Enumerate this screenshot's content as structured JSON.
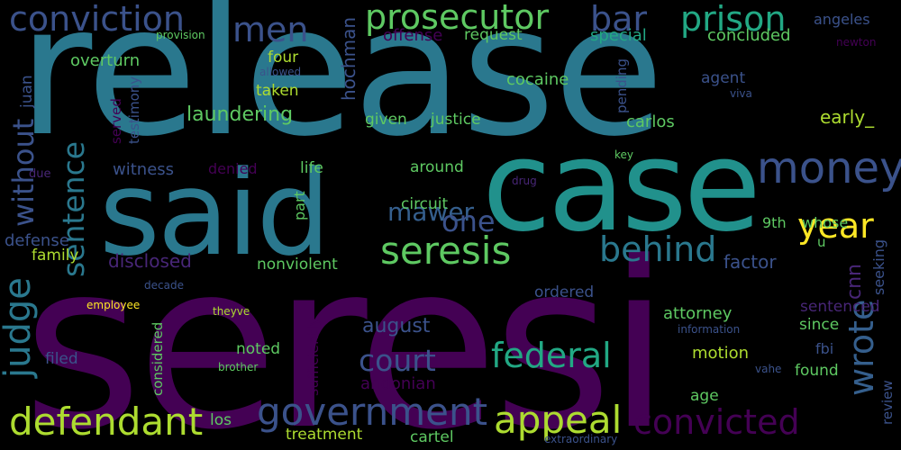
{
  "background": "#000000",
  "palette": {
    "teal": "#2a788e",
    "teal_light": "#22a884",
    "teal_mid": "#21918c",
    "green": "#5ec962",
    "lime": "#addc30",
    "yellow": "#fde725",
    "blue_slate": "#355f8d",
    "indigo": "#3b528b",
    "purple": "#440154",
    "purple_mid": "#482677"
  },
  "words": [
    {
      "text": "release",
      "color": "#2a788e"
    },
    {
      "text": "seresi",
      "color": "#440154"
    },
    {
      "text": "said",
      "color": "#2a788e"
    },
    {
      "text": "case",
      "color": "#21918c"
    },
    {
      "text": "conviction",
      "color": "#3b528b"
    },
    {
      "text": "prosecutor",
      "color": "#5ec962"
    },
    {
      "text": "bar",
      "color": "#3b528b"
    },
    {
      "text": "prison",
      "color": "#22a884"
    },
    {
      "text": "men",
      "color": "#3b528b"
    },
    {
      "text": "money",
      "color": "#3b528b"
    },
    {
      "text": "year",
      "color": "#fde725"
    },
    {
      "text": "seresis",
      "color": "#5ec962"
    },
    {
      "text": "behind",
      "color": "#2a788e"
    },
    {
      "text": "mawer",
      "color": "#355f8d"
    },
    {
      "text": "one",
      "color": "#3b528b"
    },
    {
      "text": "sentence",
      "color": "#2a788e"
    },
    {
      "text": "without",
      "color": "#3b528b"
    },
    {
      "text": "judge",
      "color": "#2a788e"
    },
    {
      "text": "defendant",
      "color": "#addc30"
    },
    {
      "text": "government",
      "color": "#3b528b"
    },
    {
      "text": "appeal",
      "color": "#addc30"
    },
    {
      "text": "convicted",
      "color": "#440154"
    },
    {
      "text": "federal",
      "color": "#22a884"
    },
    {
      "text": "court",
      "color": "#3b528b"
    },
    {
      "text": "wrote",
      "color": "#355f8d"
    },
    {
      "text": "laundering",
      "color": "#5ec962"
    },
    {
      "text": "overturn",
      "color": "#5ec962"
    },
    {
      "text": "provision",
      "color": "#5ec962"
    },
    {
      "text": "offense",
      "color": "#440154"
    },
    {
      "text": "request",
      "color": "#5ec962"
    },
    {
      "text": "special",
      "color": "#22a884"
    },
    {
      "text": "concluded",
      "color": "#5ec962"
    },
    {
      "text": "angeles",
      "color": "#3b528b"
    },
    {
      "text": "newton",
      "color": "#440154"
    },
    {
      "text": "juan",
      "color": "#3b528b"
    },
    {
      "text": "allowed",
      "color": "#3b528b"
    },
    {
      "text": "testimony",
      "color": "#3b528b"
    },
    {
      "text": "served",
      "color": "#440154"
    },
    {
      "text": "four",
      "color": "#addc30"
    },
    {
      "text": "hochman",
      "color": "#3b528b"
    },
    {
      "text": "taken",
      "color": "#addc30"
    },
    {
      "text": "cocaine",
      "color": "#5ec962"
    },
    {
      "text": "pending",
      "color": "#3b528b"
    },
    {
      "text": "agent",
      "color": "#3b528b"
    },
    {
      "text": "viva",
      "color": "#3b528b"
    },
    {
      "text": "given",
      "color": "#5ec962"
    },
    {
      "text": "justice",
      "color": "#5ec962"
    },
    {
      "text": "carlos",
      "color": "#5ec962"
    },
    {
      "text": "early_",
      "color": "#addc30"
    },
    {
      "text": "key",
      "color": "#5ec962"
    },
    {
      "text": "witness",
      "color": "#3b528b"
    },
    {
      "text": "denied",
      "color": "#440154"
    },
    {
      "text": "life",
      "color": "#5ec962"
    },
    {
      "text": "around",
      "color": "#5ec962"
    },
    {
      "text": "due",
      "color": "#482677"
    },
    {
      "text": "drug",
      "color": "#482677"
    },
    {
      "text": "circuit",
      "color": "#5ec962"
    },
    {
      "text": "9th",
      "color": "#5ec962"
    },
    {
      "text": "whose",
      "color": "#5ec962"
    },
    {
      "text": "part",
      "color": "#5ec962"
    },
    {
      "text": "u",
      "color": "#5ec962"
    },
    {
      "text": "defense",
      "color": "#3b528b"
    },
    {
      "text": "family",
      "color": "#addc30"
    },
    {
      "text": "disclosed",
      "color": "#482677"
    },
    {
      "text": "nonviolent",
      "color": "#5ec962"
    },
    {
      "text": "factor",
      "color": "#3b528b"
    },
    {
      "text": "cnn",
      "color": "#482677"
    },
    {
      "text": "seeking",
      "color": "#3b528b"
    },
    {
      "text": "ordered",
      "color": "#3b528b"
    },
    {
      "text": "sufficiently",
      "color": "#440154"
    },
    {
      "text": "attorney",
      "color": "#5ec962"
    },
    {
      "text": "sentenced",
      "color": "#482677"
    },
    {
      "text": "employee",
      "color": "#fde725"
    },
    {
      "text": "decade",
      "color": "#3b528b"
    },
    {
      "text": "theyve",
      "color": "#addc30"
    },
    {
      "text": "august",
      "color": "#3b528b"
    },
    {
      "text": "since",
      "color": "#5ec962"
    },
    {
      "text": "information",
      "color": "#3b528b"
    },
    {
      "text": "considered",
      "color": "#5ec962"
    },
    {
      "text": "noted",
      "color": "#5ec962"
    },
    {
      "text": "motion",
      "color": "#addc30"
    },
    {
      "text": "fbi",
      "color": "#3b528b"
    },
    {
      "text": "found",
      "color": "#5ec962"
    },
    {
      "text": "filed",
      "color": "#3b528b"
    },
    {
      "text": "brother",
      "color": "#5ec962"
    },
    {
      "text": "vahe",
      "color": "#3b528b"
    },
    {
      "text": "review",
      "color": "#3b528b"
    },
    {
      "text": "andonian",
      "color": "#440154"
    },
    {
      "text": "age",
      "color": "#5ec962"
    },
    {
      "text": "los",
      "color": "#5ec962"
    },
    {
      "text": "treatment",
      "color": "#addc30"
    },
    {
      "text": "cartel",
      "color": "#5ec962"
    },
    {
      "text": "extraordinary",
      "color": "#3b528b"
    }
  ]
}
